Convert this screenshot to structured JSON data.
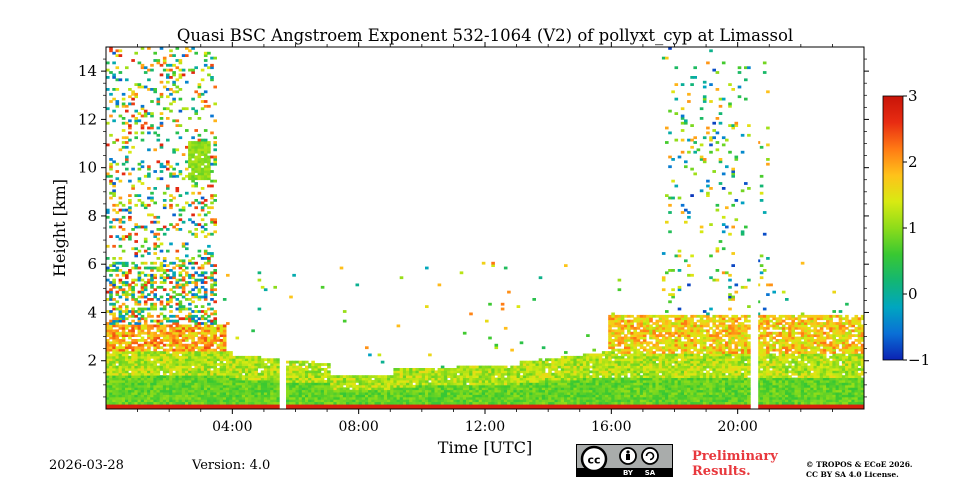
{
  "chart_data": {
    "type": "heatmap",
    "title": "Quasi BSC Angstroem Exponent 532-1064 (V2) of pollyxt_cyp at Limassol",
    "xlabel": "Time [UTC]",
    "ylabel": "Height [km]",
    "xlim_hours": [
      0,
      24
    ],
    "ylim_km": [
      0,
      15
    ],
    "x_ticks": [
      {
        "hour": 4,
        "label": "04:00"
      },
      {
        "hour": 8,
        "label": "08:00"
      },
      {
        "hour": 12,
        "label": "12:00"
      },
      {
        "hour": 16,
        "label": "16:00"
      },
      {
        "hour": 20,
        "label": "20:00"
      }
    ],
    "y_ticks": [
      {
        "value": 2,
        "label": "2"
      },
      {
        "value": 4,
        "label": "4"
      },
      {
        "value": 6,
        "label": "6"
      },
      {
        "value": 8,
        "label": "8"
      },
      {
        "value": 10,
        "label": "10"
      },
      {
        "value": 12,
        "label": "12"
      },
      {
        "value": 14,
        "label": "14"
      }
    ],
    "colorbar": {
      "min": -1,
      "max": 3,
      "ticks": [
        {
          "value": 3,
          "label": "3"
        },
        {
          "value": 2,
          "label": "2"
        },
        {
          "value": 1,
          "label": "1"
        },
        {
          "value": 0,
          "label": "0"
        },
        {
          "value": -1,
          "label": "−1"
        }
      ],
      "colormap": [
        "#0b22b3",
        "#0a6fd6",
        "#00a6c0",
        "#13b673",
        "#39c832",
        "#8ddc1a",
        "#d8ea12",
        "#ffc21a",
        "#ff7a14",
        "#e82c12",
        "#c81408"
      ]
    },
    "regions": [
      {
        "name": "boundary layer",
        "time_start": 0,
        "time_end": 24,
        "height_top_km_approx": 1.8,
        "typical_value": 0.9
      },
      {
        "name": "elevated aerosol layer",
        "time_start": 0,
        "time_end": 3.8,
        "height_bottom_km": 1.8,
        "height_top_km": 3.5,
        "typical_value": 1.8
      },
      {
        "name": "mixed upper layer",
        "time_start": 15.8,
        "time_end": 24,
        "height_bottom_km": 2.2,
        "height_top_km": 4.0,
        "typical_value": 1.7
      },
      {
        "name": "cirrus patch",
        "time_start": 2.6,
        "time_end": 3.3,
        "height_bottom_km": 9.4,
        "height_top_km": 11.0,
        "typical_value": 1.0
      },
      {
        "name": "noisy high-altitude signal",
        "time_start": 0,
        "time_end": 3.5,
        "height_bottom_km": 4,
        "height_top_km": 15,
        "typical_value": 1.0
      },
      {
        "name": "noisy columns",
        "time_start": 17.5,
        "time_end": 21.0,
        "height_bottom_km": 4,
        "height_top_km": 15,
        "typical_value": 0.5
      }
    ],
    "data_gaps": [
      {
        "time_start": 5.5,
        "time_end": 5.7
      },
      {
        "time_start": 20.45,
        "time_end": 20.65
      }
    ],
    "value_range": [
      -1,
      3
    ]
  },
  "footer": {
    "date": "2026-03-28",
    "version": "Version: 4.0",
    "preliminary_line1": "Preliminary",
    "preliminary_line2": "Results.",
    "copyright_line1": "© TROPOS & ECoE 2026.",
    "copyright_line2": "CC BY SA 4.0 License."
  },
  "license_badge": {
    "cc": "cc",
    "by": "BY",
    "sa": "SA"
  }
}
